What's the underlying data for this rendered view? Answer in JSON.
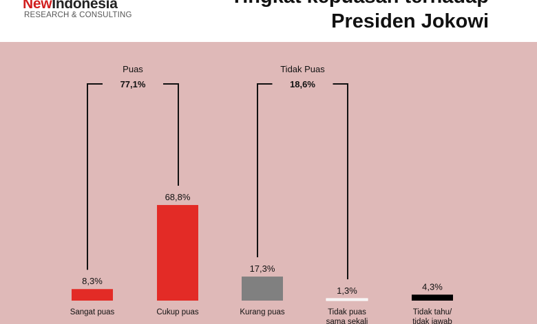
{
  "header": {
    "logo_new": "New",
    "logo_indonesia": "Indonesia",
    "logo_sub": "RESEARCH & CONSULTING",
    "title_line1": "Tingkat kepuasan terhadap",
    "title_line2": "Presiden Jokowi"
  },
  "chart_data": {
    "type": "bar",
    "title": "Tingkat kepuasan terhadap Presiden Jokowi",
    "categories": [
      [
        "Sangat puas"
      ],
      [
        "Cukup puas"
      ],
      [
        "Kurang puas"
      ],
      [
        "Tidak puas",
        "sama sekali"
      ],
      [
        "Tidak tahu/",
        "tidak jawab"
      ]
    ],
    "values": [
      8.3,
      68.8,
      17.3,
      1.3,
      4.3
    ],
    "value_labels": [
      "8,3%",
      "68,8%",
      "17,3%",
      "1,3%",
      "4,3%"
    ],
    "colors": [
      "#e32b26",
      "#e32b26",
      "#808080",
      "#f2f2f2",
      "#000000"
    ],
    "groups": [
      {
        "name": "Puas",
        "total": "77,1%",
        "from": 0,
        "to": 1
      },
      {
        "name": "Tidak Puas",
        "total": "18,6%",
        "from": 2,
        "to": 3
      }
    ],
    "grid": false,
    "legend": "none"
  }
}
